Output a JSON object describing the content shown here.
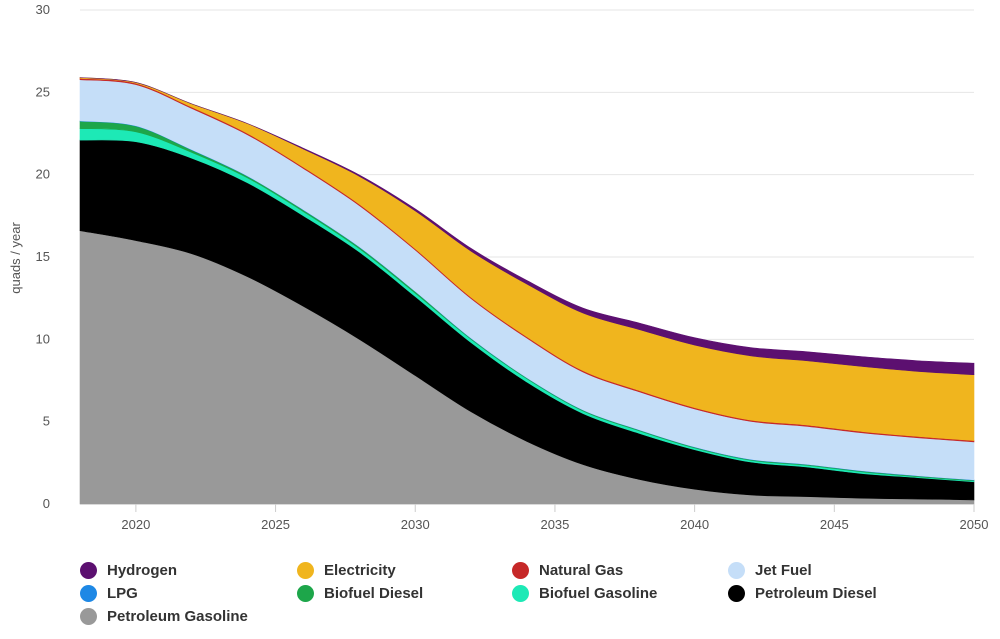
{
  "chart_data": {
    "type": "area",
    "stacked": true,
    "title": "",
    "xlabel": "",
    "ylabel": "quads / year",
    "xlim": [
      2018,
      2050
    ],
    "ylim": [
      0,
      30
    ],
    "x_ticks": [
      2020,
      2025,
      2030,
      2035,
      2040,
      2045,
      2050
    ],
    "y_ticks": [
      0,
      5,
      10,
      15,
      20,
      25,
      30
    ],
    "grid": "horizontal",
    "legend_position": "bottom",
    "x": [
      2018,
      2020,
      2022,
      2024,
      2026,
      2028,
      2030,
      2032,
      2034,
      2036,
      2038,
      2040,
      2042,
      2044,
      2046,
      2048,
      2050
    ],
    "series": [
      {
        "name": "Petroleum Gasoline",
        "color": "#999999",
        "values": [
          16.6,
          16.0,
          15.2,
          13.8,
          12.0,
          10.0,
          7.8,
          5.6,
          3.8,
          2.4,
          1.5,
          0.9,
          0.55,
          0.45,
          0.35,
          0.3,
          0.25
        ]
      },
      {
        "name": "Petroleum Diesel",
        "color": "#000000",
        "values": [
          5.5,
          6.0,
          5.8,
          5.7,
          5.5,
          5.3,
          4.8,
          4.2,
          3.6,
          3.1,
          2.8,
          2.4,
          2.0,
          1.8,
          1.5,
          1.3,
          1.1
        ]
      },
      {
        "name": "Biofuel Gasoline",
        "color": "#1de9b6",
        "values": [
          0.7,
          0.6,
          0.35,
          0.3,
          0.25,
          0.2,
          0.2,
          0.2,
          0.2,
          0.15,
          0.15,
          0.1,
          0.1,
          0.1,
          0.1,
          0.05,
          0.05
        ]
      },
      {
        "name": "Biofuel Diesel",
        "color": "#1da64a",
        "values": [
          0.45,
          0.35,
          0.15,
          0.1,
          0.1,
          0.1,
          0.1,
          0.05,
          0.05,
          0.05,
          0.05,
          0.05,
          0.05,
          0.05,
          0.05,
          0.05,
          0.05
        ]
      },
      {
        "name": "LPG",
        "color": "#1e88e5",
        "values": [
          0.02,
          0.02,
          0.02,
          0.02,
          0.02,
          0.02,
          0.02,
          0.02,
          0.02,
          0.02,
          0.02,
          0.02,
          0.02,
          0.02,
          0.02,
          0.02,
          0.02
        ]
      },
      {
        "name": "Jet Fuel",
        "color": "#c5def8",
        "values": [
          2.5,
          2.5,
          2.5,
          2.5,
          2.5,
          2.5,
          2.5,
          2.4,
          2.4,
          2.3,
          2.3,
          2.3,
          2.3,
          2.3,
          2.3,
          2.3,
          2.3
        ]
      },
      {
        "name": "Natural Gas",
        "color": "#c62828",
        "values": [
          0.08,
          0.08,
          0.08,
          0.08,
          0.08,
          0.08,
          0.08,
          0.08,
          0.08,
          0.08,
          0.08,
          0.08,
          0.08,
          0.08,
          0.08,
          0.08,
          0.08
        ]
      },
      {
        "name": "Electricity",
        "color": "#f0b51e",
        "values": [
          0.05,
          0.05,
          0.2,
          0.6,
          1.1,
          1.7,
          2.3,
          2.8,
          3.2,
          3.5,
          3.7,
          3.8,
          3.9,
          3.9,
          3.95,
          3.95,
          4.0
        ]
      },
      {
        "name": "Hydrogen",
        "color": "#5c1070",
        "values": [
          0.0,
          0.0,
          0.0,
          0.0,
          0.05,
          0.08,
          0.12,
          0.17,
          0.22,
          0.3,
          0.4,
          0.45,
          0.5,
          0.55,
          0.6,
          0.65,
          0.7
        ]
      }
    ]
  },
  "legend": {
    "items": [
      {
        "label": "Hydrogen",
        "color": "#5c1070"
      },
      {
        "label": "Electricity",
        "color": "#f0b51e"
      },
      {
        "label": "Natural Gas",
        "color": "#c62828"
      },
      {
        "label": "Jet Fuel",
        "color": "#c5def8"
      },
      {
        "label": "LPG",
        "color": "#1e88e5"
      },
      {
        "label": "Biofuel Diesel",
        "color": "#1da64a"
      },
      {
        "label": "Biofuel Gasoline",
        "color": "#1de9b6"
      },
      {
        "label": "Petroleum Diesel",
        "color": "#000000"
      },
      {
        "label": "Petroleum Gasoline",
        "color": "#999999"
      }
    ]
  }
}
